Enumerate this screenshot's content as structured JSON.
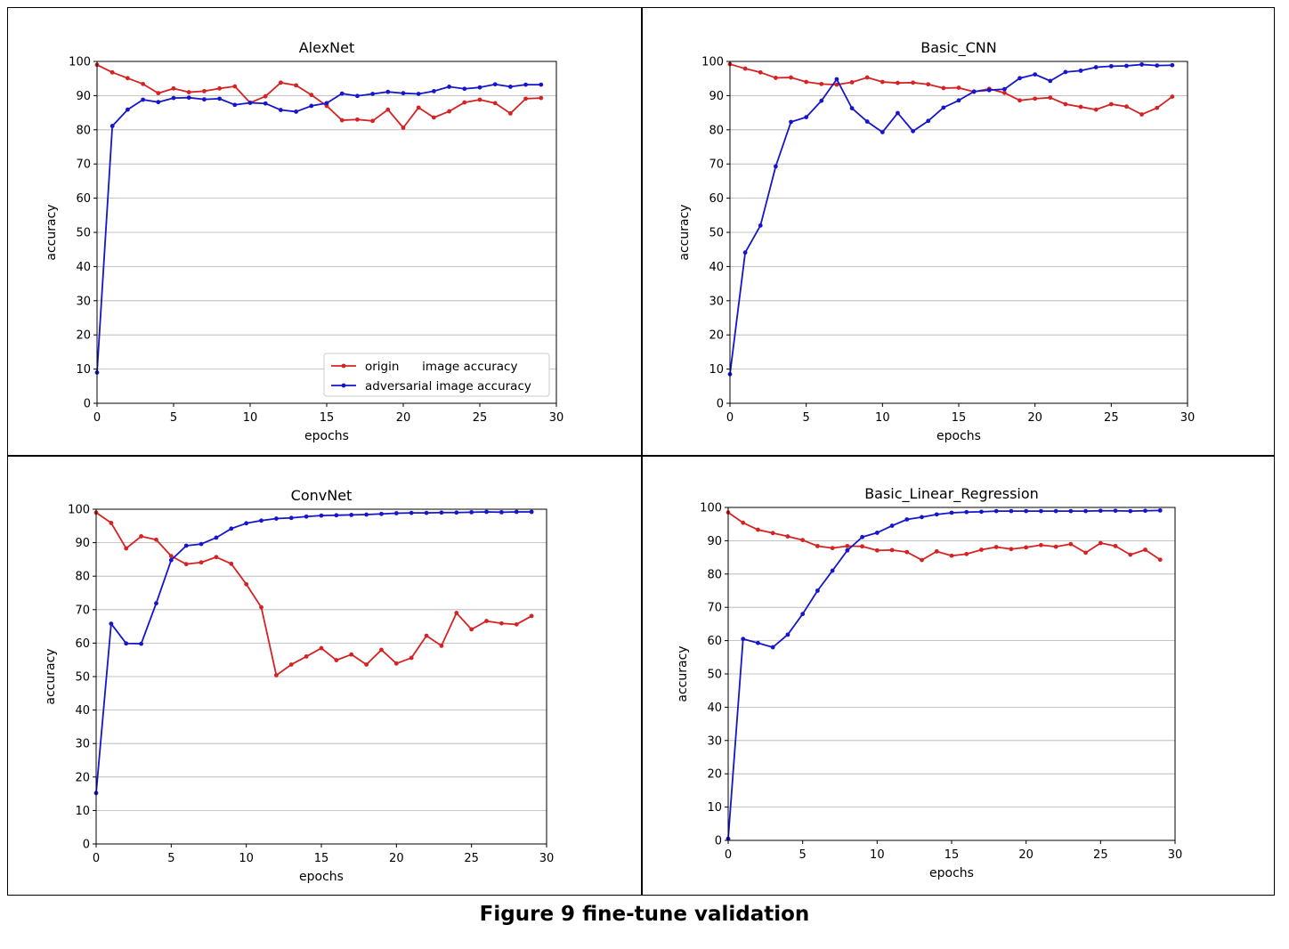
{
  "caption": "Figure 9 fine-tune validation",
  "colors": {
    "origin": "#d62222",
    "adversarial": "#1515cc",
    "grid": "#b0b0b0"
  },
  "chart_data": [
    {
      "type": "line",
      "title": "AlexNet",
      "xlabel": "epochs",
      "ylabel": "accuracy",
      "xlim": [
        0,
        30
      ],
      "ylim": [
        0,
        100
      ],
      "xticks": [
        0,
        5,
        10,
        15,
        20,
        25,
        30
      ],
      "yticks": [
        0,
        10,
        20,
        30,
        40,
        50,
        60,
        70,
        80,
        90,
        100
      ],
      "grid": "horizontal",
      "legend": "lower-right",
      "x": [
        0,
        1,
        2,
        3,
        4,
        5,
        6,
        7,
        8,
        9,
        10,
        11,
        12,
        13,
        14,
        15,
        16,
        17,
        18,
        19,
        20,
        21,
        22,
        23,
        24,
        25,
        26,
        27,
        28,
        29
      ],
      "series": [
        {
          "name": "origin      image accuracy",
          "values": [
            99,
            96.8,
            95.1,
            93.4,
            90.7,
            92.1,
            91,
            91.3,
            92.1,
            92.7,
            87.9,
            89.8,
            93.8,
            93,
            90.2,
            87,
            82.8,
            83,
            82.6,
            85.9,
            80.6,
            86.5,
            83.6,
            85.4,
            88,
            88.8,
            87.8,
            84.8,
            89.1,
            89.3
          ]
        },
        {
          "name": "adversarial image accuracy",
          "values": [
            9,
            81.1,
            85.9,
            88.8,
            88.1,
            89.3,
            89.4,
            88.9,
            89.1,
            87.3,
            87.9,
            87.7,
            85.8,
            85.3,
            87,
            87.8,
            90.6,
            89.9,
            90.5,
            91.1,
            90.7,
            90.5,
            91.3,
            92.6,
            92,
            92.4,
            93.3,
            92.6,
            93.2,
            93.2
          ]
        }
      ]
    },
    {
      "type": "line",
      "title": "Basic_CNN",
      "xlabel": "epochs",
      "ylabel": "accuracy",
      "xlim": [
        0,
        30
      ],
      "ylim": [
        0,
        100
      ],
      "xticks": [
        0,
        5,
        10,
        15,
        20,
        25,
        30
      ],
      "yticks": [
        0,
        10,
        20,
        30,
        40,
        50,
        60,
        70,
        80,
        90,
        100
      ],
      "grid": "horizontal",
      "legend": "none",
      "x": [
        0,
        1,
        2,
        3,
        4,
        5,
        6,
        7,
        8,
        9,
        10,
        11,
        12,
        13,
        14,
        15,
        16,
        17,
        18,
        19,
        20,
        21,
        22,
        23,
        24,
        25,
        26,
        27,
        28,
        29
      ],
      "series": [
        {
          "values": [
            99.2,
            97.9,
            96.8,
            95.2,
            95.3,
            94,
            93.4,
            93.2,
            93.9,
            95.3,
            94,
            93.7,
            93.8,
            93.3,
            92.2,
            92.3,
            91.1,
            92,
            90.8,
            88.6,
            89.1,
            89.4,
            87.5,
            86.7,
            85.9,
            87.5,
            86.8,
            84.5,
            86.4,
            89.7
          ]
        },
        {
          "values": [
            8.5,
            44.1,
            52,
            69.3,
            82.3,
            83.7,
            88.5,
            94.8,
            86.3,
            82.4,
            79.3,
            84.9,
            79.6,
            82.6,
            86.5,
            88.6,
            91.2,
            91.6,
            91.9,
            95.1,
            96.2,
            94.3,
            96.9,
            97.3,
            98.3,
            98.6,
            98.7,
            99.1,
            98.8,
            98.9
          ]
        }
      ]
    },
    {
      "type": "line",
      "title": "ConvNet",
      "xlabel": "epochs",
      "ylabel": "accuracy",
      "xlim": [
        0,
        30
      ],
      "ylim": [
        0,
        100
      ],
      "xticks": [
        0,
        5,
        10,
        15,
        20,
        25,
        30
      ],
      "yticks": [
        0,
        10,
        20,
        30,
        40,
        50,
        60,
        70,
        80,
        90,
        100
      ],
      "grid": "horizontal",
      "legend": "none",
      "x": [
        0,
        1,
        2,
        3,
        4,
        5,
        6,
        7,
        8,
        9,
        10,
        11,
        12,
        13,
        14,
        15,
        16,
        17,
        18,
        19,
        20,
        21,
        22,
        23,
        24,
        25,
        26,
        27,
        28,
        29
      ],
      "series": [
        {
          "values": [
            99,
            95.9,
            88.3,
            91.9,
            90.9,
            86,
            83.6,
            84.1,
            85.7,
            83.7,
            77.6,
            70.7,
            50.4,
            53.6,
            56,
            58.5,
            54.9,
            56.6,
            53.6,
            58,
            53.9,
            55.6,
            62.2,
            59.2,
            69,
            64.1,
            66.6,
            65.9,
            65.6,
            68.1
          ]
        },
        {
          "values": [
            15.2,
            65.8,
            59.9,
            59.8,
            71.9,
            84.8,
            89.1,
            89.6,
            91.5,
            94.2,
            95.8,
            96.6,
            97.2,
            97.4,
            97.8,
            98.1,
            98.2,
            98.3,
            98.4,
            98.6,
            98.8,
            98.9,
            98.9,
            99,
            99,
            99.1,
            99.2,
            99.1,
            99.2,
            99.2
          ]
        }
      ]
    },
    {
      "type": "line",
      "title": "Basic_Linear_Regression",
      "xlabel": "epochs",
      "ylabel": "accuracy",
      "xlim": [
        0,
        30
      ],
      "ylim": [
        0,
        100
      ],
      "xticks": [
        0,
        5,
        10,
        15,
        20,
        25,
        30
      ],
      "yticks": [
        0,
        10,
        20,
        30,
        40,
        50,
        60,
        70,
        80,
        90,
        100
      ],
      "grid": "horizontal",
      "legend": "none",
      "x": [
        0,
        1,
        2,
        3,
        4,
        5,
        6,
        7,
        8,
        9,
        10,
        11,
        12,
        13,
        14,
        15,
        16,
        17,
        18,
        19,
        20,
        21,
        22,
        23,
        24,
        25,
        26,
        27,
        28,
        29
      ],
      "series": [
        {
          "values": [
            98.5,
            95.4,
            93.3,
            92.3,
            91.3,
            90.2,
            88.4,
            87.8,
            88.4,
            88.3,
            87.1,
            87.2,
            86.6,
            84.2,
            86.8,
            85.5,
            86,
            87.3,
            88.1,
            87.5,
            88,
            88.7,
            88.2,
            89,
            86.4,
            89.3,
            88.4,
            85.8,
            87.3,
            84.3
          ]
        },
        {
          "values": [
            0.5,
            60.5,
            59.3,
            58,
            61.8,
            68,
            75,
            81,
            87.1,
            91.1,
            92.4,
            94.5,
            96.4,
            97.1,
            97.9,
            98.4,
            98.6,
            98.7,
            98.9,
            98.9,
            98.9,
            98.9,
            98.9,
            98.9,
            98.9,
            99,
            99,
            98.9,
            99,
            99.1
          ]
        }
      ]
    }
  ]
}
